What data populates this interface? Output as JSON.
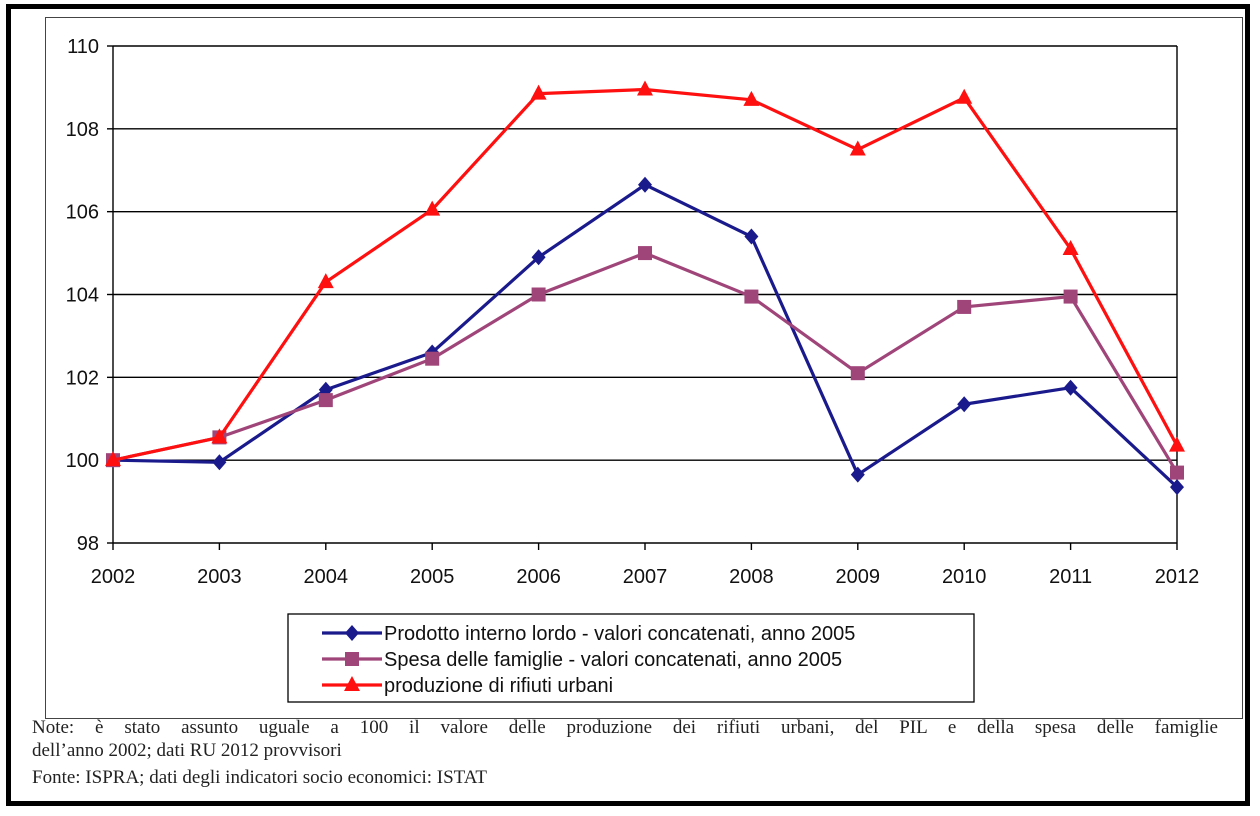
{
  "chart_data": {
    "type": "line",
    "title": "",
    "xlabel": "",
    "ylabel": "",
    "categories": [
      "2002",
      "2003",
      "2004",
      "2005",
      "2006",
      "2007",
      "2008",
      "2009",
      "2010",
      "2011",
      "2012"
    ],
    "ylim": [
      98,
      110
    ],
    "yticks": [
      98,
      100,
      102,
      104,
      106,
      108,
      110
    ],
    "grid": true,
    "legend_position": "bottom",
    "series": [
      {
        "name": "Prodotto interno lordo - valori concatenati, anno 2005",
        "color": "#1a1a8c",
        "marker": "diamond",
        "values": [
          100.0,
          99.95,
          101.7,
          102.6,
          104.9,
          106.65,
          105.4,
          99.65,
          101.35,
          101.75,
          99.35
        ]
      },
      {
        "name": "Spesa delle famiglie - valori concatenati, anno 2005",
        "color": "#a0457a",
        "marker": "square",
        "values": [
          100.0,
          100.55,
          101.45,
          102.45,
          104.0,
          105.0,
          103.95,
          102.1,
          103.7,
          103.95,
          99.7
        ]
      },
      {
        "name": "produzione di rifiuti urbani",
        "color": "#ff1010",
        "marker": "triangle",
        "values": [
          100.0,
          100.55,
          104.3,
          106.05,
          108.85,
          108.95,
          108.7,
          107.5,
          108.75,
          105.1,
          100.35
        ]
      }
    ]
  },
  "notes": {
    "line1": "Note: è stato assunto uguale a 100 il valore delle produzione dei rifiuti urbani, del PIL e della spesa delle famiglie",
    "line2": "dell’anno 2002; dati RU 2012 provvisori",
    "line3": "Fonte: ISPRA; dati degli indicatori socio economici: ISTAT"
  }
}
